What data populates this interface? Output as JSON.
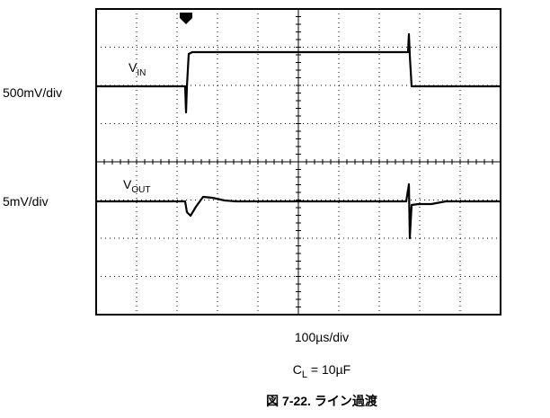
{
  "scope": {
    "channels": [
      {
        "scale": "500mV/div",
        "name": "V",
        "sub": "IN"
      },
      {
        "scale": "5mV/div",
        "name": "V",
        "sub": "OUT"
      }
    ],
    "time_scale": "100µs/div",
    "condition": {
      "name": "C",
      "sub": "L",
      "rest": " = 10µF"
    },
    "caption": "図 7-22. ライン過渡"
  }
}
